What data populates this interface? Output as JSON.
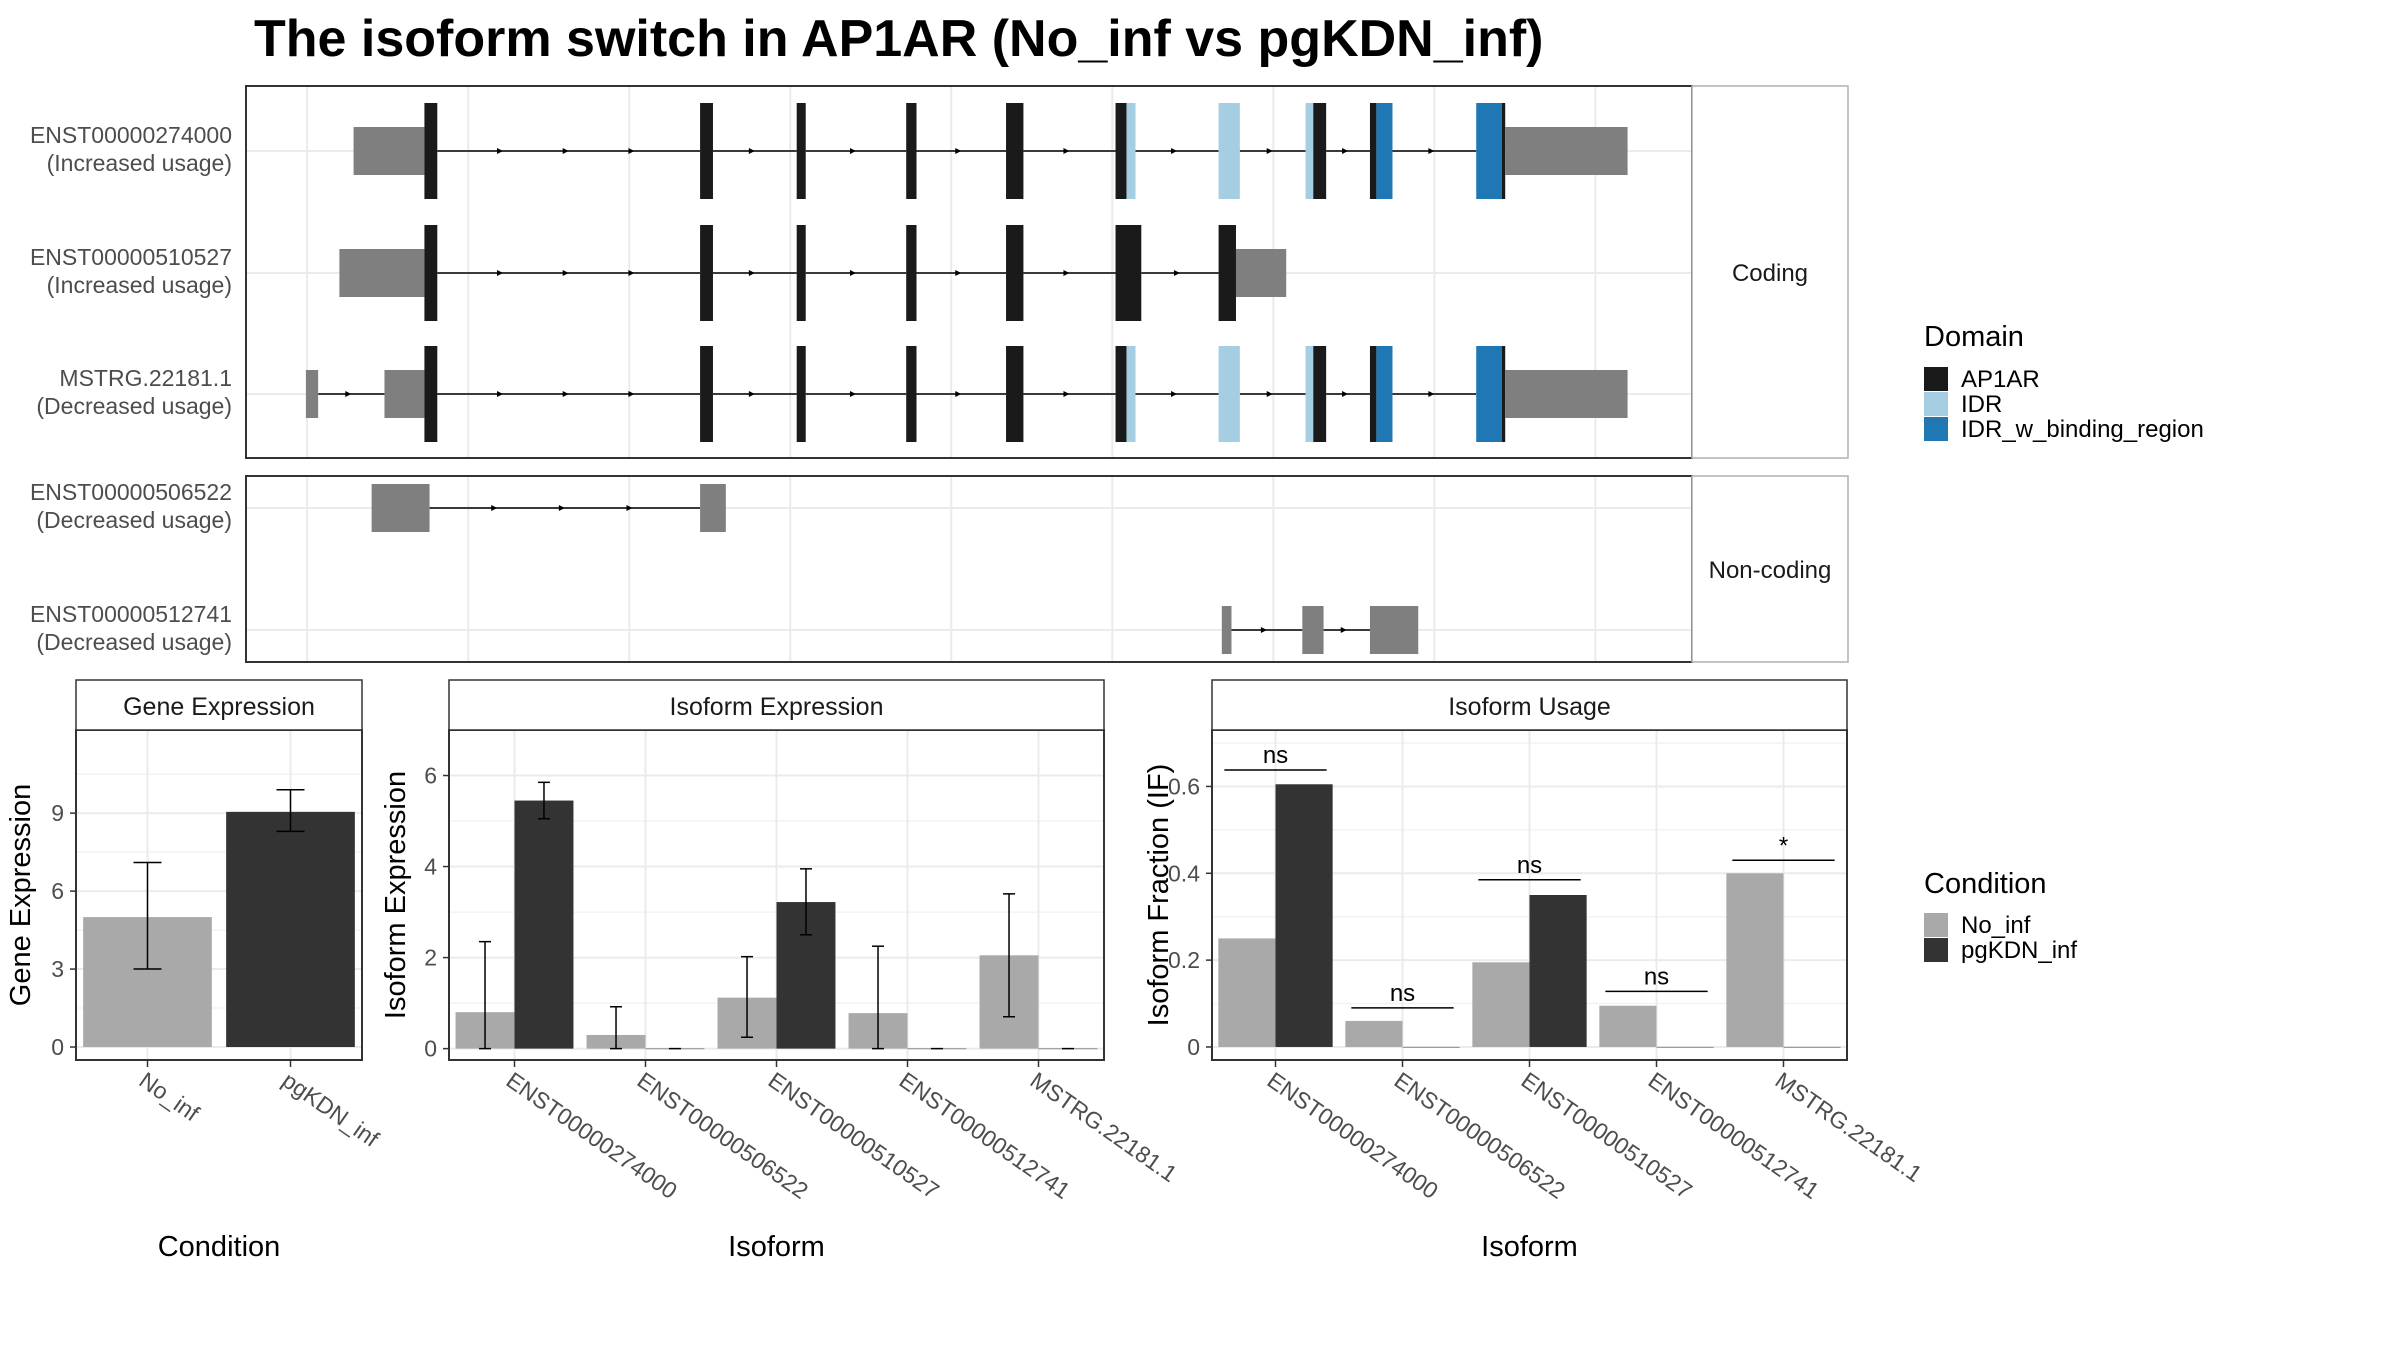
{
  "title": "The isoform switch in AP1AR (No_inf vs pgKDN_inf)",
  "colors": {
    "AP1AR": "#1a1a1a",
    "IDR": "#a6cee3",
    "IDR_w_binding_region": "#1f78b4",
    "utr": "#7f7f7f",
    "No_inf": "#a9a9a9",
    "pgKDN_inf": "#333333",
    "panel_border": "#333333",
    "strip_border": "#b0b0b0",
    "strip_fill": "#ffffff",
    "grid": "#ebebeb"
  },
  "structure": {
    "facets": [
      "Coding",
      "Non-coding"
    ],
    "transcripts": [
      {
        "id": "ENST00000274000",
        "status": "(Increased usage)",
        "facet": "Coding",
        "exons": [
          {
            "s": 0.72,
            "e": 1.82,
            "k": "utr"
          },
          {
            "s": 1.82,
            "e": 2.02,
            "k": "AP1AR"
          },
          {
            "s": 6.1,
            "e": 6.3,
            "k": "AP1AR"
          },
          {
            "s": 7.6,
            "e": 7.74,
            "k": "AP1AR"
          },
          {
            "s": 9.3,
            "e": 9.46,
            "k": "AP1AR"
          },
          {
            "s": 10.85,
            "e": 11.12,
            "k": "AP1AR"
          },
          {
            "s": 12.55,
            "e": 12.72,
            "k": "AP1AR"
          },
          {
            "s": 12.72,
            "e": 12.86,
            "k": "IDR"
          },
          {
            "s": 14.15,
            "e": 14.48,
            "k": "IDR"
          },
          {
            "s": 15.5,
            "e": 15.62,
            "k": "IDR"
          },
          {
            "s": 15.62,
            "e": 15.82,
            "k": "AP1AR"
          },
          {
            "s": 16.5,
            "e": 16.6,
            "k": "AP1AR"
          },
          {
            "s": 16.6,
            "e": 16.85,
            "k": "IDR_w_binding_region"
          },
          {
            "s": 18.15,
            "e": 18.55,
            "k": "IDR_w_binding_region"
          },
          {
            "s": 18.55,
            "e": 18.6,
            "k": "AP1AR"
          },
          {
            "s": 18.6,
            "e": 20.5,
            "k": "utr"
          }
        ]
      },
      {
        "id": "ENST00000510527",
        "status": "(Increased usage)",
        "facet": "Coding",
        "exons": [
          {
            "s": 0.5,
            "e": 1.82,
            "k": "utr"
          },
          {
            "s": 1.82,
            "e": 2.02,
            "k": "AP1AR"
          },
          {
            "s": 6.1,
            "e": 6.3,
            "k": "AP1AR"
          },
          {
            "s": 7.6,
            "e": 7.74,
            "k": "AP1AR"
          },
          {
            "s": 9.3,
            "e": 9.46,
            "k": "AP1AR"
          },
          {
            "s": 10.85,
            "e": 11.12,
            "k": "AP1AR"
          },
          {
            "s": 12.55,
            "e": 12.95,
            "k": "AP1AR"
          },
          {
            "s": 14.15,
            "e": 14.42,
            "k": "AP1AR"
          },
          {
            "s": 14.42,
            "e": 15.2,
            "k": "utr"
          }
        ]
      },
      {
        "id": "MSTRG.22181.1",
        "status": "(Decreased usage)",
        "facet": "Coding",
        "exons": [
          {
            "s": -0.02,
            "e": 0.17,
            "k": "utr"
          },
          {
            "s": 1.2,
            "e": 1.82,
            "k": "utr"
          },
          {
            "s": 1.82,
            "e": 2.02,
            "k": "AP1AR"
          },
          {
            "s": 6.1,
            "e": 6.3,
            "k": "AP1AR"
          },
          {
            "s": 7.6,
            "e": 7.74,
            "k": "AP1AR"
          },
          {
            "s": 9.3,
            "e": 9.46,
            "k": "AP1AR"
          },
          {
            "s": 10.85,
            "e": 11.12,
            "k": "AP1AR"
          },
          {
            "s": 12.55,
            "e": 12.72,
            "k": "AP1AR"
          },
          {
            "s": 12.72,
            "e": 12.86,
            "k": "IDR"
          },
          {
            "s": 14.15,
            "e": 14.48,
            "k": "IDR"
          },
          {
            "s": 15.5,
            "e": 15.62,
            "k": "IDR"
          },
          {
            "s": 15.62,
            "e": 15.82,
            "k": "AP1AR"
          },
          {
            "s": 16.5,
            "e": 16.6,
            "k": "AP1AR"
          },
          {
            "s": 16.6,
            "e": 16.85,
            "k": "IDR_w_binding_region"
          },
          {
            "s": 18.15,
            "e": 18.55,
            "k": "IDR_w_binding_region"
          },
          {
            "s": 18.55,
            "e": 18.6,
            "k": "AP1AR"
          },
          {
            "s": 18.6,
            "e": 20.5,
            "k": "utr"
          }
        ]
      },
      {
        "id": "ENST00000506522",
        "status": "(Decreased usage)",
        "facet": "Non-coding",
        "exons": [
          {
            "s": 1.0,
            "e": 1.9,
            "k": "utr"
          },
          {
            "s": 6.1,
            "e": 6.5,
            "k": "utr"
          }
        ]
      },
      {
        "id": "ENST00000512741",
        "status": "(Decreased usage)",
        "facet": "Non-coding",
        "exons": [
          {
            "s": 14.2,
            "e": 14.35,
            "k": "utr"
          },
          {
            "s": 15.45,
            "e": 15.78,
            "k": "utr"
          },
          {
            "s": 16.5,
            "e": 17.25,
            "k": "utr"
          }
        ]
      }
    ]
  },
  "legend_domain": {
    "title": "Domain",
    "items": [
      {
        "label": "AP1AR",
        "color": "#1a1a1a"
      },
      {
        "label": "IDR",
        "color": "#a6cee3"
      },
      {
        "label": "IDR_w_binding_region",
        "color": "#1f78b4"
      }
    ]
  },
  "legend_condition": {
    "title": "Condition",
    "items": [
      {
        "label": "No_inf",
        "color": "#a9a9a9"
      },
      {
        "label": "pgKDN_inf",
        "color": "#333333"
      }
    ]
  },
  "chart_data": [
    {
      "type": "bar",
      "title": "Gene Expression",
      "xlabel": "Condition",
      "ylabel": "Gene Expression",
      "categories": [
        "No_inf",
        "pgKDN_inf"
      ],
      "values": [
        5.0,
        9.05
      ],
      "errors": [
        [
          3.0,
          7.1
        ],
        [
          8.3,
          9.9
        ]
      ],
      "colors": [
        "#a9a9a9",
        "#333333"
      ],
      "yticks": [
        0,
        3,
        6,
        9
      ],
      "ylim": [
        -0.5,
        12.2
      ]
    },
    {
      "type": "bar",
      "title": "Isoform Expression",
      "xlabel": "Isoform",
      "ylabel": "Isoform Expression",
      "categories": [
        "ENST00000274000",
        "ENST00000506522",
        "ENST00000510527",
        "ENST00000512741",
        "MSTRG.22181.1"
      ],
      "series": [
        {
          "name": "No_inf",
          "values": [
            0.8,
            0.3,
            1.12,
            0.78,
            2.05
          ],
          "errors": [
            [
              0,
              2.35
            ],
            [
              0,
              0.92
            ],
            [
              0.25,
              2.02
            ],
            [
              0,
              2.25
            ],
            [
              0.7,
              3.4
            ]
          ]
        },
        {
          "name": "pgKDN_inf",
          "values": [
            5.45,
            0,
            3.22,
            0,
            0
          ],
          "errors": [
            [
              5.05,
              5.85
            ],
            null,
            [
              2.5,
              3.95
            ],
            null,
            null
          ]
        }
      ],
      "yticks": [
        0,
        2,
        4,
        6
      ],
      "ylim": [
        -0.25,
        7.0
      ]
    },
    {
      "type": "bar",
      "title": "Isoform Usage",
      "xlabel": "Isoform",
      "ylabel": "Isoform Fraction (IF)",
      "categories": [
        "ENST00000274000",
        "ENST00000506522",
        "ENST00000510527",
        "ENST00000512741",
        "MSTRG.22181.1"
      ],
      "series": [
        {
          "name": "No_inf",
          "values": [
            0.25,
            0.06,
            0.195,
            0.095,
            0.4
          ]
        },
        {
          "name": "pgKDN_inf",
          "values": [
            0.605,
            0,
            0.35,
            0,
            0
          ]
        }
      ],
      "significance": [
        {
          "label": "ns",
          "y": 0.638
        },
        {
          "label": "ns",
          "y": 0.09
        },
        {
          "label": "ns",
          "y": 0.385
        },
        {
          "label": "ns",
          "y": 0.128
        },
        {
          "label": "*",
          "y": 0.43
        }
      ],
      "yticks": [
        0.0,
        0.2,
        0.4,
        0.6
      ],
      "ylim": [
        -0.03,
        0.73
      ]
    }
  ]
}
